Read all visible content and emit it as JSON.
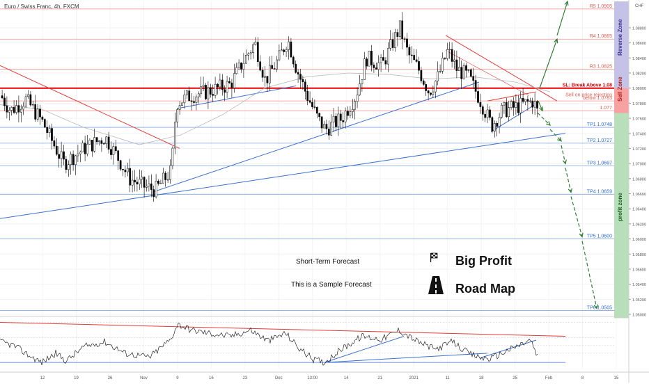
{
  "header": {
    "title": "Euro / Swiss Franc, 4h, FXCM"
  },
  "currency": "CHF",
  "colors": {
    "bull_candle": "#ffffff",
    "bear_candle": "#000000",
    "level_line": "#f28b82",
    "tp_line": "#7fa6e0",
    "sl_line": "#e00000",
    "trend_red": "#e53935",
    "trend_blue": "#3b6fd0",
    "forecast_arrow": "#2e7d32",
    "reverse_zone": "#c5c2e8",
    "sell_zone": "#f7a1a1",
    "profit_zone": "#b7dfb9",
    "rsi_line": "#222222"
  },
  "zones": {
    "reverse": "Reverse Zone",
    "sell": "Sell Zone",
    "profit": "profit zone"
  },
  "levels": [
    {
      "label": "R5 1.0905",
      "price": 1.0905,
      "kind": "resistance"
    },
    {
      "label": "R4 1.0865",
      "price": 1.0865,
      "kind": "resistance"
    },
    {
      "label": "R3 1.0825",
      "price": 1.0825,
      "kind": "resistance"
    },
    {
      "label": "SL: Break Above 1.08",
      "price": 1.08,
      "kind": "stop"
    },
    {
      "label": "Sell on price rejection",
      "price": 1.0791,
      "kind": "note"
    },
    {
      "label": "below 1.0783",
      "price": 1.0783,
      "kind": "entry"
    },
    {
      "label": "1.077",
      "price": 1.077,
      "kind": "entry"
    },
    {
      "label": "TP1 1.0748",
      "price": 1.0748,
      "kind": "target"
    },
    {
      "label": "TP2 1.0727",
      "price": 1.0727,
      "kind": "target"
    },
    {
      "label": "TP3 1.0697",
      "price": 1.0697,
      "kind": "target"
    },
    {
      "label": "TP4 1.0659",
      "price": 1.0659,
      "kind": "target"
    },
    {
      "label": "TP5 1.0600",
      "price": 1.06,
      "kind": "target"
    },
    {
      "label": "TP6 1.0505",
      "price": 1.0505,
      "kind": "target"
    }
  ],
  "annotations": {
    "short_term": "Short-Term Forecast",
    "sample": "This is a Sample Forecast",
    "big_profit": "Big Profit",
    "road_map": "Road Map"
  },
  "chart_data": {
    "type": "candlestick",
    "title": "Euro / Swiss Franc, 4h, FXCM",
    "y_range": [
      1.05,
      1.0915
    ],
    "y_ticks": [
      "1.08800",
      "1.08600",
      "1.08400",
      "1.08200",
      "1.08000",
      "1.07800",
      "1.07600",
      "1.07400",
      "1.07200",
      "1.07000",
      "1.06800",
      "1.06600",
      "1.06400",
      "1.06200",
      "1.06000",
      "1.05800",
      "1.05600",
      "1.05400",
      "1.05200",
      "1.05000"
    ],
    "x_ticks": [
      "12",
      "19",
      "26",
      "Nov",
      "9",
      "16",
      "23",
      "Dec",
      "13:00",
      "14",
      "21",
      "2021",
      "11",
      "18",
      "25",
      "Feb",
      "8",
      "15"
    ],
    "price_path": [
      [
        0,
        1.079
      ],
      [
        14,
        1.077
      ],
      [
        36,
        1.0785
      ],
      [
        60,
        1.0755
      ],
      [
        90,
        1.07
      ],
      [
        120,
        1.072
      ],
      [
        150,
        1.0735
      ],
      [
        170,
        1.0705
      ],
      [
        185,
        1.068
      ],
      [
        205,
        1.067
      ],
      [
        222,
        1.0665
      ],
      [
        245,
        1.069
      ],
      [
        252,
        1.078
      ],
      [
        272,
        1.079
      ],
      [
        295,
        1.0795
      ],
      [
        330,
        1.0805
      ],
      [
        348,
        1.0835
      ],
      [
        365,
        1.086
      ],
      [
        380,
        1.081
      ],
      [
        400,
        1.084
      ],
      [
        412,
        1.0865
      ],
      [
        425,
        1.0825
      ],
      [
        440,
        1.079
      ],
      [
        455,
        1.076
      ],
      [
        466,
        1.0745
      ],
      [
        490,
        1.076
      ],
      [
        510,
        1.079
      ],
      [
        525,
        1.084
      ],
      [
        548,
        1.083
      ],
      [
        560,
        1.0855
      ],
      [
        573,
        1.088
      ],
      [
        585,
        1.0845
      ],
      [
        600,
        1.0825
      ],
      [
        615,
        1.0795
      ],
      [
        628,
        1.0815
      ],
      [
        642,
        1.085
      ],
      [
        655,
        1.0825
      ],
      [
        672,
        1.0815
      ],
      [
        688,
        1.0785
      ],
      [
        705,
        1.075
      ],
      [
        720,
        1.077
      ],
      [
        740,
        1.0775
      ],
      [
        755,
        1.078
      ],
      [
        765,
        1.0783
      ],
      [
        772,
        1.0765
      ]
    ],
    "forecast_path": [
      1.077,
      1.0748,
      1.0727,
      1.0697,
      1.0659,
      1.06,
      1.0505
    ],
    "rsi": {
      "y_ticks": [
        "80.00",
        "60.00",
        "50.00",
        "40.00"
      ],
      "current": "50.00",
      "y_range": [
        20,
        85
      ],
      "path": [
        [
          0,
          55
        ],
        [
          20,
          50
        ],
        [
          40,
          38
        ],
        [
          60,
          28
        ],
        [
          80,
          40
        ],
        [
          95,
          30
        ],
        [
          120,
          48
        ],
        [
          150,
          55
        ],
        [
          180,
          40
        ],
        [
          215,
          35
        ],
        [
          245,
          58
        ],
        [
          255,
          78
        ],
        [
          275,
          70
        ],
        [
          300,
          66
        ],
        [
          330,
          62
        ],
        [
          360,
          70
        ],
        [
          385,
          56
        ],
        [
          410,
          66
        ],
        [
          430,
          46
        ],
        [
          450,
          32
        ],
        [
          466,
          28
        ],
        [
          490,
          45
        ],
        [
          520,
          62
        ],
        [
          548,
          58
        ],
        [
          573,
          70
        ],
        [
          600,
          55
        ],
        [
          625,
          45
        ],
        [
          650,
          55
        ],
        [
          672,
          40
        ],
        [
          690,
          34
        ],
        [
          705,
          33
        ],
        [
          725,
          42
        ],
        [
          745,
          50
        ],
        [
          762,
          57
        ],
        [
          772,
          35
        ]
      ]
    }
  }
}
